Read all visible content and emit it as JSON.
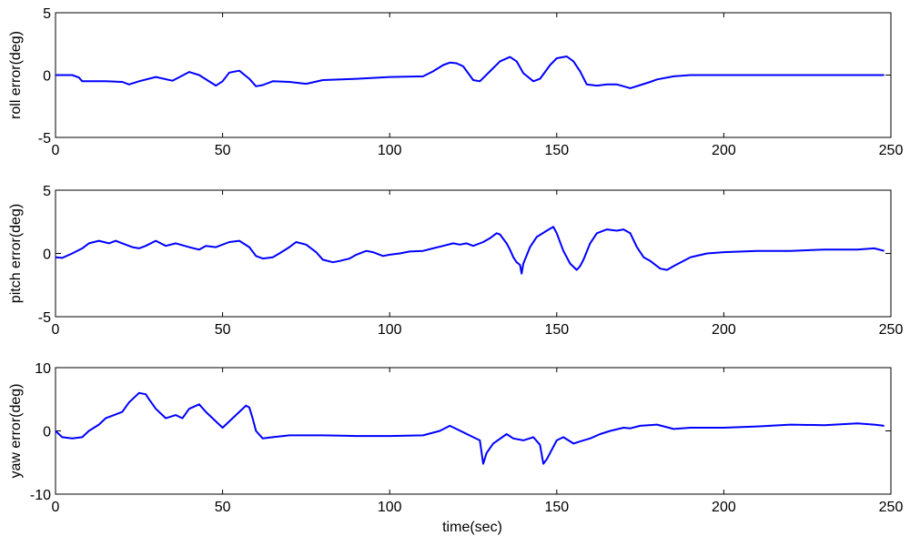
{
  "figure": {
    "xlabel": "time(sec)"
  },
  "chart_data": [
    {
      "type": "line",
      "title": "",
      "xlabel": "",
      "ylabel": "roll error(deg)",
      "xlim": [
        0,
        250
      ],
      "ylim": [
        -5,
        5
      ],
      "xticks": [
        0,
        50,
        100,
        150,
        200,
        250
      ],
      "yticks": [
        -5,
        0,
        5
      ],
      "grid": false,
      "line_color": "#0000ff",
      "x": [
        0,
        5,
        7,
        8,
        15,
        20,
        22,
        25,
        30,
        35,
        40,
        43,
        48,
        50,
        52,
        55,
        58,
        60,
        62,
        65,
        70,
        75,
        80,
        90,
        100,
        110,
        113,
        116,
        118,
        120,
        122,
        125,
        127,
        130,
        133,
        136,
        138,
        140,
        143,
        145,
        148,
        150,
        153,
        155,
        157,
        159,
        162,
        165,
        168,
        170,
        172,
        175,
        178,
        180,
        185,
        190,
        200,
        210,
        220,
        230,
        240,
        248
      ],
      "y": [
        0,
        0,
        -0.2,
        -0.5,
        -0.5,
        -0.55,
        -0.75,
        -0.5,
        -0.15,
        -0.45,
        0.25,
        0,
        -0.85,
        -0.5,
        0.2,
        0.35,
        -0.3,
        -0.9,
        -0.8,
        -0.5,
        -0.55,
        -0.7,
        -0.4,
        -0.3,
        -0.15,
        -0.1,
        0.3,
        0.8,
        1,
        0.95,
        0.7,
        -0.4,
        -0.5,
        0.3,
        1.1,
        1.45,
        1.1,
        0.15,
        -0.5,
        -0.3,
        0.8,
        1.35,
        1.5,
        1.1,
        0.3,
        -0.75,
        -0.85,
        -0.75,
        -0.75,
        -0.9,
        -1.05,
        -0.8,
        -0.55,
        -0.35,
        -0.1,
        0,
        0,
        0,
        0,
        0,
        0,
        0
      ]
    },
    {
      "type": "line",
      "title": "",
      "xlabel": "",
      "ylabel": "pitch error(deg)",
      "xlim": [
        0,
        250
      ],
      "ylim": [
        -5,
        5
      ],
      "xticks": [
        0,
        50,
        100,
        150,
        200,
        250
      ],
      "yticks": [
        -5,
        0,
        5
      ],
      "grid": false,
      "line_color": "#0000ff",
      "x": [
        0,
        2,
        5,
        8,
        10,
        13,
        16,
        18,
        20,
        23,
        25,
        27,
        30,
        33,
        36,
        40,
        43,
        45,
        48,
        52,
        55,
        58,
        60,
        62,
        65,
        67,
        70,
        72,
        75,
        78,
        80,
        83,
        85,
        88,
        90,
        93,
        95,
        98,
        100,
        103,
        106,
        110,
        113,
        116,
        119,
        121,
        123,
        125,
        128,
        130,
        132,
        133,
        135,
        136,
        137,
        138,
        139,
        139.5,
        140,
        142,
        144,
        147,
        149,
        150,
        152,
        154,
        156,
        157,
        158,
        160,
        162,
        165,
        168,
        170,
        172,
        174,
        176,
        178,
        181,
        183,
        185,
        190,
        195,
        200,
        210,
        220,
        230,
        240,
        245,
        248
      ],
      "y": [
        -0.3,
        -0.35,
        0,
        0.4,
        0.8,
        1,
        0.8,
        1,
        0.8,
        0.5,
        0.4,
        0.6,
        1,
        0.6,
        0.8,
        0.5,
        0.3,
        0.6,
        0.5,
        0.9,
        1,
        0.5,
        -0.2,
        -0.4,
        -0.3,
        0,
        0.5,
        0.9,
        0.7,
        0.1,
        -0.5,
        -0.7,
        -0.6,
        -0.4,
        -0.1,
        0.2,
        0.1,
        -0.2,
        -0.1,
        0,
        0.15,
        0.2,
        0.4,
        0.6,
        0.8,
        0.7,
        0.8,
        0.6,
        0.9,
        1.2,
        1.6,
        1.5,
        0.8,
        0.3,
        -0.3,
        -0.7,
        -0.9,
        -1.6,
        -0.8,
        0.5,
        1.3,
        1.8,
        2.1,
        1.6,
        0.2,
        -0.8,
        -1.3,
        -1,
        -0.5,
        0.8,
        1.6,
        1.9,
        1.8,
        1.9,
        1.6,
        0.5,
        -0.3,
        -0.6,
        -1.2,
        -1.3,
        -1,
        -0.3,
        0,
        0.1,
        0.2,
        0.2,
        0.3,
        0.3,
        0.4,
        0.2
      ]
    },
    {
      "type": "line",
      "title": "",
      "xlabel": "time(sec)",
      "ylabel": "yaw error(deg)",
      "xlim": [
        0,
        250
      ],
      "ylim": [
        -10,
        10
      ],
      "xticks": [
        0,
        50,
        100,
        150,
        200,
        250
      ],
      "yticks": [
        -10,
        0,
        10
      ],
      "grid": false,
      "line_color": "#0000ff",
      "x": [
        0,
        2,
        5,
        8,
        10,
        13,
        15,
        18,
        20,
        22,
        25,
        27,
        28,
        30,
        33,
        36,
        38,
        40,
        43,
        45,
        48,
        50,
        52,
        55,
        57,
        58,
        59,
        60,
        62,
        65,
        70,
        80,
        90,
        100,
        110,
        115,
        118,
        120,
        125,
        127,
        128,
        129,
        131,
        135,
        137,
        140,
        143,
        145,
        146,
        147,
        150,
        152,
        155,
        158,
        160,
        163,
        166,
        170,
        172,
        175,
        180,
        185,
        190,
        200,
        210,
        220,
        230,
        240,
        245,
        248
      ],
      "y": [
        0,
        -1,
        -1.2,
        -1,
        0,
        1,
        2,
        2.6,
        3,
        4.5,
        6,
        5.8,
        5,
        3.5,
        2,
        2.5,
        2,
        3.5,
        4.2,
        3,
        1.5,
        0.5,
        1.5,
        3,
        4,
        3.7,
        2,
        0,
        -1.2,
        -1,
        -0.7,
        -0.7,
        -0.8,
        -0.8,
        -0.7,
        0,
        0.8,
        0.3,
        -1,
        -1.5,
        -5.2,
        -3.5,
        -2,
        -0.5,
        -1.2,
        -1.5,
        -1,
        -2.2,
        -5.2,
        -4.5,
        -1.5,
        -1,
        -2,
        -1.5,
        -1.2,
        -0.5,
        0,
        0.5,
        0.4,
        0.8,
        1,
        0.3,
        0.5,
        0.5,
        0.7,
        1,
        0.9,
        1.2,
        1,
        0.8
      ]
    }
  ]
}
